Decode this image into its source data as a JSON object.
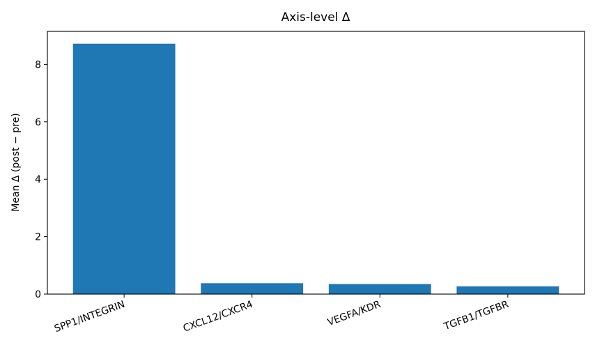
{
  "chart_data": {
    "type": "bar",
    "title": "Axis-level Δ",
    "xlabel": "",
    "ylabel": "Mean Δ (post − pre)",
    "categories": [
      "SPP1/INTEGRIN",
      "CXCL12/CXCR4",
      "VEGFA/KDR",
      "TGFB1/TGFBR"
    ],
    "values": [
      8.72,
      0.38,
      0.35,
      0.27
    ],
    "ylim": [
      0,
      9.15
    ],
    "yticks": [
      0,
      2,
      4,
      6,
      8
    ],
    "grid": false,
    "bar_color": "#1f77b4"
  }
}
